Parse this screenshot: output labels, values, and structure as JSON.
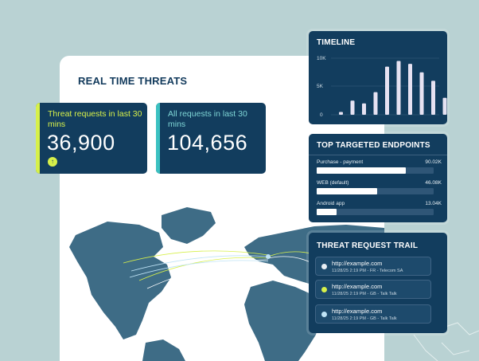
{
  "panel": {
    "title": "REAL TIME THREATS"
  },
  "stats": [
    {
      "label": "Threat requests in last 30 mins",
      "value": "36,900",
      "accent": "#d7f04a",
      "trend_icon": "arrow-up-icon"
    },
    {
      "label": "All requests in last 30 mins",
      "value": "104,656",
      "accent": "#3cc1c1"
    }
  ],
  "timeline": {
    "title": "TIMELINE",
    "y_ticks": [
      "10K",
      "5K",
      "0"
    ],
    "chart_data": {
      "type": "bar",
      "values": [
        500,
        2500,
        2000,
        4000,
        8500,
        9500,
        9000,
        7500,
        6000,
        3000
      ],
      "ylim": [
        0,
        10000
      ],
      "grid": true
    }
  },
  "endpoints": {
    "title": "TOP TARGETED ENDPOINTS",
    "items": [
      {
        "name": "Purchase - payment",
        "value": "90.02K",
        "fraction": 0.76
      },
      {
        "name": "WEB (default)",
        "value": "46.08K",
        "fraction": 0.52
      },
      {
        "name": "Android app",
        "value": "13.04K",
        "fraction": 0.17
      }
    ]
  },
  "trail": {
    "title": "THREAT REQUEST TRAIL",
    "items": [
      {
        "url": "http://example.com",
        "meta": "11/28/25 2:19 PM - FR - Telecom SA",
        "dot": "#e8eef4"
      },
      {
        "url": "http://example.com",
        "meta": "11/28/25 2:19 PM - GB - Talk Talk",
        "dot": "#d7f04a"
      },
      {
        "url": "http://example.com",
        "meta": "11/28/25 2:19 PM - GB - Talk Talk",
        "dot": "#bfe3f5"
      }
    ]
  }
}
